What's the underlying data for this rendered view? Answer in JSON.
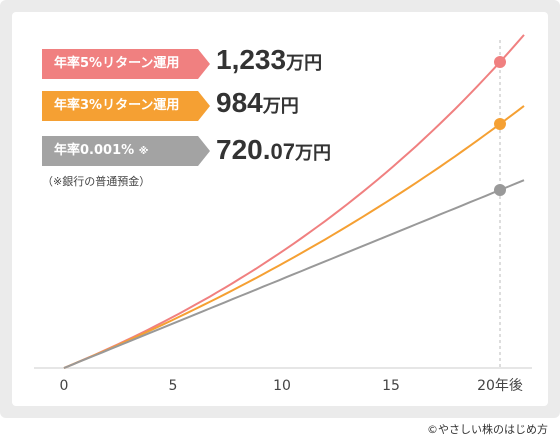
{
  "chart_data": {
    "type": "line",
    "x": [
      0,
      5,
      10,
      15,
      20
    ],
    "xticks": [
      "0",
      "5",
      "10",
      "15",
      "20年後"
    ],
    "xlim": [
      0,
      20
    ],
    "series": [
      {
        "name": "年率5%リターン運用",
        "color": "#f08080",
        "end_value": 1233,
        "growth_rate": 0.05,
        "label_a": "1,233",
        "label_b": "",
        "unit": "万円"
      },
      {
        "name": "年率3%リターン運用",
        "color": "#f5a033",
        "end_value": 984,
        "growth_rate": 0.03,
        "label_a": "984",
        "label_b": "",
        "unit": "万円"
      },
      {
        "name": "年率0.001%",
        "note_mark": "※",
        "color": "#999999",
        "end_value": 720.07,
        "growth_rate": 1e-05,
        "label_a": "720.",
        "label_b": "07",
        "unit": "万円"
      }
    ],
    "footnote": "（※銀行の普通預金）",
    "grid": false
  },
  "credit": "©やさしい株のはじめ方"
}
